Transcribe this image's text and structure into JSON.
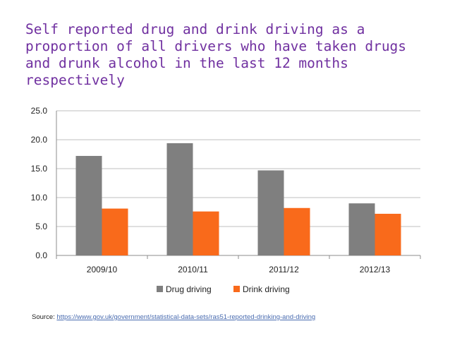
{
  "chart_data": {
    "type": "bar",
    "title": "Self reported drug and drink driving as a\nproportion of all drivers who have taken drugs\nand drunk alcohol in the last 12 months\nrespectively",
    "categories": [
      "2009/10",
      "2010/11",
      "2011/12",
      "2012/13"
    ],
    "series": [
      {
        "name": "Drug driving",
        "values": [
          17.2,
          19.4,
          14.7,
          9.0
        ],
        "color": "#7f7f7f"
      },
      {
        "name": "Drink driving",
        "values": [
          8.1,
          7.6,
          8.2,
          7.2
        ],
        "color": "#f96a1b"
      }
    ],
    "ylim": [
      0,
      25
    ],
    "yticks": [
      "0.0",
      "5.0",
      "10.0",
      "15.0",
      "20.0",
      "25.0"
    ],
    "grid": true,
    "legend": "bottom"
  },
  "source": {
    "label": "Source:",
    "url": "https://www.gov.uk/government/statistical-data-sets/ras51-reported-drinking-and-driving"
  }
}
